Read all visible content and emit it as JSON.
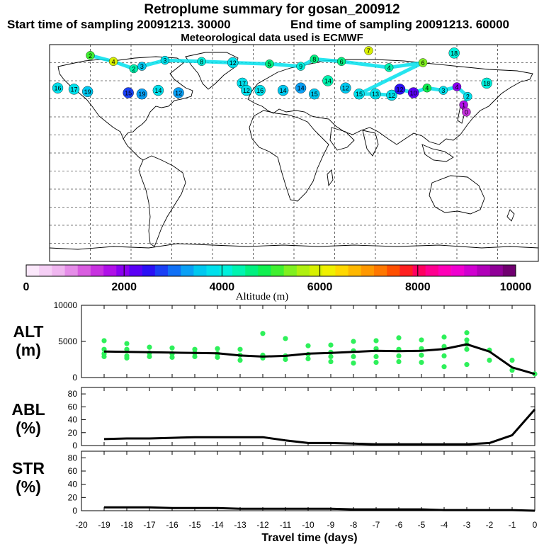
{
  "header": {
    "title": "Retroplume summary for gosan_200912",
    "start_label": "Start time of sampling 20091213. 30000",
    "end_label": "End time of sampling 20091213. 60000",
    "met_label": "Meteorological data used is ECMWF"
  },
  "colorbar": {
    "xlabel": "Altitude (m)",
    "ticks": [
      "0",
      "2000",
      "4000",
      "6000",
      "8000",
      "10000"
    ],
    "colors": [
      "#fbe8fb",
      "#f5cff5",
      "#efb6ef",
      "#e58de8",
      "#d95ee0",
      "#c832e0",
      "#b010e8",
      "#8a00f0",
      "#5a00f5",
      "#2a10f5",
      "#1a40f5",
      "#1070f5",
      "#0aa0f5",
      "#00c8f0",
      "#00e0ec",
      "#00f0dc",
      "#00f4b0",
      "#00f080",
      "#10f050",
      "#40f030",
      "#80f020",
      "#b0f010",
      "#d8f000",
      "#f0f000",
      "#ffd800",
      "#ffb800",
      "#ff9800",
      "#ff7800",
      "#ff5000",
      "#ff2020",
      "#ff0060",
      "#ff0090",
      "#ff00b8",
      "#f000d0",
      "#d000d0",
      "#b000b8",
      "#900098",
      "#700070"
    ]
  },
  "map_markers": [
    {
      "lon": -150,
      "lat": 81,
      "label": "2",
      "alt": 5200
    },
    {
      "lon": -133,
      "lat": 76,
      "label": "4",
      "alt": 6000
    },
    {
      "lon": -118,
      "lat": 70,
      "label": "2",
      "alt": 4300
    },
    {
      "lon": -112,
      "lat": 72,
      "label": "3",
      "alt": 3600
    },
    {
      "lon": -95,
      "lat": 77,
      "label": "3",
      "alt": 3700
    },
    {
      "lon": -68,
      "lat": 76,
      "label": "8",
      "alt": 4000
    },
    {
      "lon": -45,
      "lat": 75,
      "label": "12",
      "alt": 3800
    },
    {
      "lon": -18,
      "lat": 74,
      "label": "5",
      "alt": 4600
    },
    {
      "lon": 5,
      "lat": 72,
      "label": "9",
      "alt": 4000
    },
    {
      "lon": 15,
      "lat": 78,
      "label": "8",
      "alt": 4500
    },
    {
      "lon": 35,
      "lat": 76,
      "label": "6",
      "alt": 4700
    },
    {
      "lon": 55,
      "lat": 85,
      "label": "7",
      "alt": 5800
    },
    {
      "lon": 70,
      "lat": 71,
      "label": "4",
      "alt": 4300
    },
    {
      "lon": 95,
      "lat": 75,
      "label": "6",
      "alt": 5500
    },
    {
      "lon": 118,
      "lat": 83,
      "label": "18",
      "alt": 4000
    },
    {
      "lon": -174,
      "lat": 54,
      "label": "16",
      "alt": 3900
    },
    {
      "lon": -162,
      "lat": 53,
      "label": "17",
      "alt": 3900
    },
    {
      "lon": -152,
      "lat": 51,
      "label": "19",
      "alt": 3600
    },
    {
      "lon": -122,
      "lat": 50,
      "label": "15",
      "alt": 2800
    },
    {
      "lon": -112,
      "lat": 49,
      "label": "19",
      "alt": 3300
    },
    {
      "lon": -100,
      "lat": 52,
      "label": "14",
      "alt": 3900
    },
    {
      "lon": -85,
      "lat": 50,
      "label": "12",
      "alt": 3200
    },
    {
      "lon": -38,
      "lat": 58,
      "label": "17",
      "alt": 3700
    },
    {
      "lon": -35,
      "lat": 52,
      "label": "12",
      "alt": 3700
    },
    {
      "lon": -25,
      "lat": 52,
      "label": "16",
      "alt": 3900
    },
    {
      "lon": -8,
      "lat": 52,
      "label": "14",
      "alt": 3600
    },
    {
      "lon": 5,
      "lat": 54,
      "label": "14",
      "alt": 3300
    },
    {
      "lon": 15,
      "lat": 49,
      "label": "15",
      "alt": 3500
    },
    {
      "lon": 25,
      "lat": 60,
      "label": "14",
      "alt": 4300
    },
    {
      "lon": 38,
      "lat": 54,
      "label": "12",
      "alt": 3600
    },
    {
      "lon": 48,
      "lat": 49,
      "label": "15",
      "alt": 3700
    },
    {
      "lon": 60,
      "lat": 49,
      "label": "13",
      "alt": 3900
    },
    {
      "lon": 72,
      "lat": 48,
      "label": "12",
      "alt": 3700
    },
    {
      "lon": 78,
      "lat": 53,
      "label": "12",
      "alt": 2400
    },
    {
      "lon": 88,
      "lat": 50,
      "label": "10",
      "alt": 2200
    },
    {
      "lon": 98,
      "lat": 54,
      "label": "4",
      "alt": 4900
    },
    {
      "lon": 110,
      "lat": 52,
      "label": "3",
      "alt": 3900
    },
    {
      "lon": 120,
      "lat": 55,
      "label": "4",
      "alt": 1900
    },
    {
      "lon": 128,
      "lat": 47,
      "label": "2",
      "alt": 3800
    },
    {
      "lon": 142,
      "lat": 58,
      "label": "18",
      "alt": 4100
    },
    {
      "lon": 125,
      "lat": 40,
      "label": "1",
      "alt": 1600
    },
    {
      "lon": 127,
      "lat": 34,
      "label": "0",
      "alt": 1500
    }
  ],
  "chart_data": [
    {
      "type": "scatter+line",
      "panel": "ALT",
      "ylabel_line1": "ALT",
      "ylabel_line2": "(m)",
      "ylim": [
        0,
        10000
      ],
      "yticks": [
        "10000",
        "5000",
        "0"
      ],
      "line_x": [
        -19,
        -18,
        -17,
        -16,
        -15,
        -14,
        -13,
        -12,
        -11,
        -10,
        -9,
        -8,
        -7,
        -6,
        -5,
        -4,
        -3,
        -2,
        -1,
        0
      ],
      "line_y": [
        3600,
        3550,
        3500,
        3450,
        3400,
        3350,
        3050,
        2900,
        3000,
        3300,
        3400,
        3550,
        3700,
        3650,
        3700,
        3950,
        4600,
        3600,
        1400,
        500
      ],
      "scatter": [
        [
          -19,
          5100
        ],
        [
          -19,
          3900
        ],
        [
          -19,
          3300
        ],
        [
          -19,
          2900
        ],
        [
          -18,
          4700
        ],
        [
          -18,
          3900
        ],
        [
          -18,
          3000
        ],
        [
          -18,
          2700
        ],
        [
          -17,
          4200
        ],
        [
          -17,
          3400
        ],
        [
          -17,
          2900
        ],
        [
          -16,
          4100
        ],
        [
          -16,
          3300
        ],
        [
          -16,
          2800
        ],
        [
          -15,
          3900
        ],
        [
          -15,
          3400
        ],
        [
          -15,
          2900
        ],
        [
          -14,
          4000
        ],
        [
          -14,
          3300
        ],
        [
          -14,
          2800
        ],
        [
          -13,
          3900
        ],
        [
          -13,
          3100
        ],
        [
          -13,
          2400
        ],
        [
          -12,
          6100
        ],
        [
          -12,
          3100
        ],
        [
          -12,
          2700
        ],
        [
          -11,
          5400
        ],
        [
          -11,
          3000
        ],
        [
          -11,
          2500
        ],
        [
          -10,
          4400
        ],
        [
          -10,
          3200
        ],
        [
          -10,
          2600
        ],
        [
          -9,
          4500
        ],
        [
          -9,
          3500
        ],
        [
          -9,
          2900
        ],
        [
          -9,
          2200
        ],
        [
          -8,
          5000
        ],
        [
          -8,
          3700
        ],
        [
          -8,
          2900
        ],
        [
          -8,
          2000
        ],
        [
          -7,
          5100
        ],
        [
          -7,
          4000
        ],
        [
          -7,
          2900
        ],
        [
          -7,
          2100
        ],
        [
          -6,
          5500
        ],
        [
          -6,
          3900
        ],
        [
          -6,
          3000
        ],
        [
          -6,
          2200
        ],
        [
          -5,
          5200
        ],
        [
          -5,
          4000
        ],
        [
          -5,
          3100
        ],
        [
          -5,
          2100
        ],
        [
          -4,
          5600
        ],
        [
          -4,
          4300
        ],
        [
          -4,
          3000
        ],
        [
          -4,
          1500
        ],
        [
          -3,
          6200
        ],
        [
          -3,
          5200
        ],
        [
          -3,
          4600
        ],
        [
          -3,
          3900
        ],
        [
          -3,
          1800
        ],
        [
          -2,
          3800
        ],
        [
          -2,
          2400
        ],
        [
          -1,
          2400
        ],
        [
          -1,
          1000
        ],
        [
          0,
          500
        ]
      ]
    },
    {
      "type": "line",
      "panel": "ABL",
      "ylabel_line1": "ABL",
      "ylabel_line2": "(%)",
      "ylim": [
        0,
        90
      ],
      "yticks": [
        "80",
        "60",
        "40",
        "20",
        "0"
      ],
      "x": [
        -19,
        -18,
        -17,
        -16,
        -15,
        -14,
        -13,
        -12,
        -11,
        -10,
        -9,
        -8,
        -7,
        -6,
        -5,
        -4,
        -3,
        -2,
        -1,
        0
      ],
      "y": [
        10,
        11,
        11,
        12,
        13,
        13,
        13,
        13,
        8,
        4,
        4,
        3,
        2,
        2,
        2,
        2,
        2,
        4,
        16,
        56
      ]
    },
    {
      "type": "line",
      "panel": "STR",
      "ylabel_line1": "STR",
      "ylabel_line2": "(%)",
      "ylim": [
        0,
        90
      ],
      "yticks": [
        "80",
        "60",
        "40",
        "20",
        "0"
      ],
      "x": [
        -19,
        -18,
        -17,
        -16,
        -15,
        -14,
        -13,
        -12,
        -11,
        -10,
        -9,
        -8,
        -7,
        -6,
        -5,
        -4,
        -3,
        -2,
        -1,
        0
      ],
      "y": [
        5,
        5,
        5,
        4,
        4,
        4,
        3,
        3,
        3,
        3,
        3,
        2,
        2,
        2,
        2,
        1,
        1,
        1,
        1,
        0
      ]
    }
  ],
  "xaxis": {
    "label": "Travel time (days)",
    "ticks": [
      "-20",
      "-19",
      "-18",
      "-17",
      "-16",
      "-15",
      "-14",
      "-13",
      "-12",
      "-11",
      "-10",
      "-9",
      "-8",
      "-7",
      "-6",
      "-5",
      "-4",
      "-3",
      "-2",
      "-1",
      "0"
    ]
  }
}
